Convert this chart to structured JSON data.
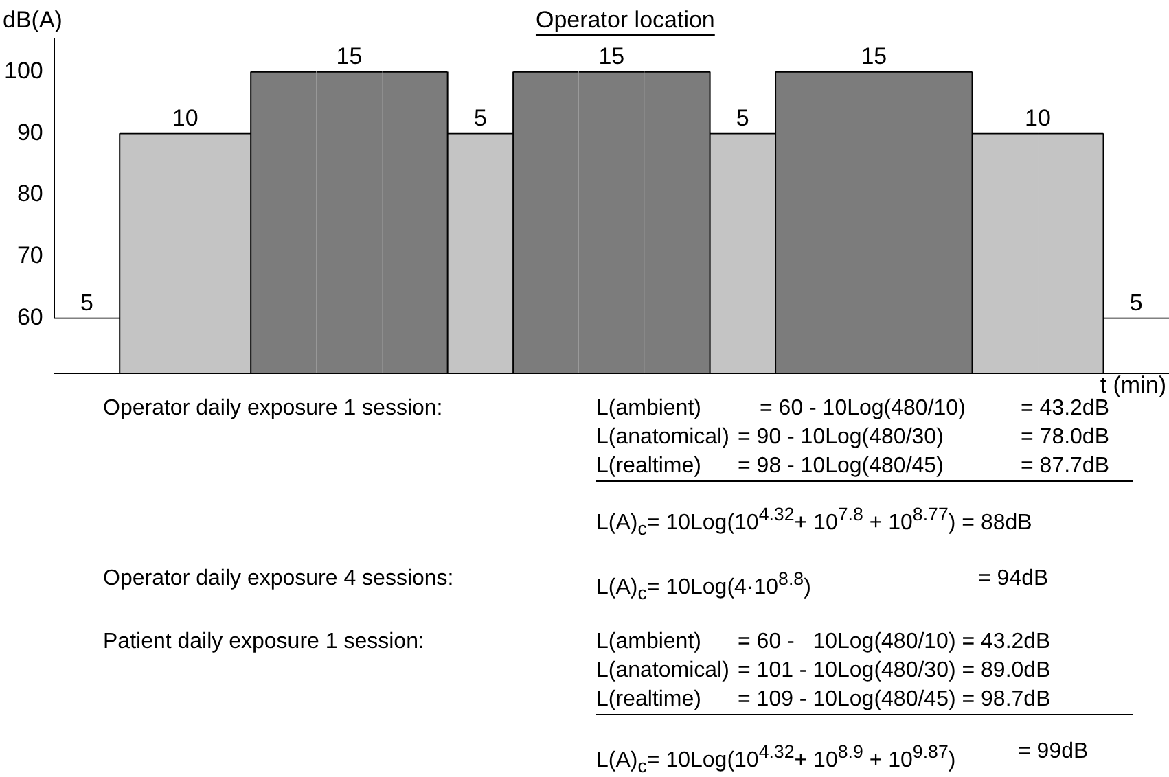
{
  "chart_data": {
    "type": "bar",
    "title": "Operator location",
    "xlabel": "t (min)",
    "ylabel": "dB(A)",
    "categories": [
      null,
      null,
      null,
      null,
      null,
      null,
      null,
      null,
      null,
      null,
      null,
      null,
      null,
      null,
      null,
      null,
      null
    ],
    "values": [
      60,
      90,
      90,
      100,
      100,
      100,
      90,
      100,
      100,
      100,
      90,
      100,
      100,
      100,
      90,
      90,
      60
    ],
    "colors": [
      "#ffffff",
      "#c4c4c4",
      "#c4c4c4",
      "#7c7c7c",
      "#7c7c7c",
      "#7c7c7c",
      "#c4c4c4",
      "#7c7c7c",
      "#7c7c7c",
      "#7c7c7c",
      "#c4c4c4",
      "#7c7c7c",
      "#7c7c7c",
      "#7c7c7c",
      "#c4c4c4",
      "#c4c4c4",
      "#ffffff"
    ],
    "ylim": [
      51,
      105.4
    ],
    "yticks": [
      60,
      70,
      80,
      90,
      100
    ],
    "grid": false,
    "legend": false,
    "tick_labels": "y",
    "annotations": [
      "Operator daily exposure 1 session:",
      "L(ambient)",
      "= 60 - 10Log(480/10)",
      "= 43.2dB",
      "L(anatomical)",
      "= 90 - 10Log(480/30)",
      "= 78.0dB",
      "L(realtime)",
      "= 98 - 10Log(480/45)",
      "= 87.7dB",
      "L(A)$_{c}$= 10Log(10$^{4.32}$+ 10$^{7.8}$ + 10$^{8.77}$) = 88dB",
      "Operator daily exposure 4 sessions:",
      "L(A)$_{c}$= 10Log(4·10$^{8.8}$)",
      "= 94dB",
      "Patient daily exposure 1 session:",
      "L(ambient)",
      "= 60 -   10Log(480/10) = 43.2dB",
      "L(anatomical)",
      "= 101 - 10Log(480/30) = 89.0dB",
      "L(realtime)",
      "= 109 - 10Log(480/45) = 98.7dB",
      "L(A)$_{c}$= 10Log(10$^{4.32}$+ 10$^{8.9}$ + 10$^{9.87}$)",
      "= 99dB",
      "5",
      "10",
      "15",
      "5",
      "15",
      "5",
      "15",
      "10",
      "5"
    ]
  }
}
